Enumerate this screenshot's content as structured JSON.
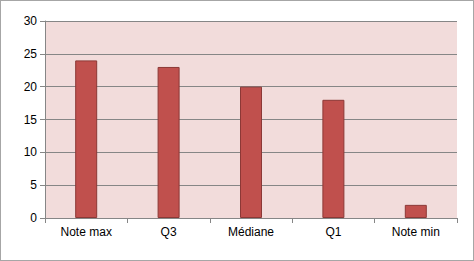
{
  "chart_data": {
    "type": "bar",
    "categories": [
      "Note max",
      "Q3",
      "Médiane",
      "Q1",
      "Note min"
    ],
    "values": [
      24,
      23,
      20,
      18,
      2
    ],
    "color": "#c0504d",
    "ylim": [
      0,
      30
    ],
    "yticks": [
      0,
      5,
      10,
      15,
      20,
      25,
      30
    ],
    "grid": true
  }
}
